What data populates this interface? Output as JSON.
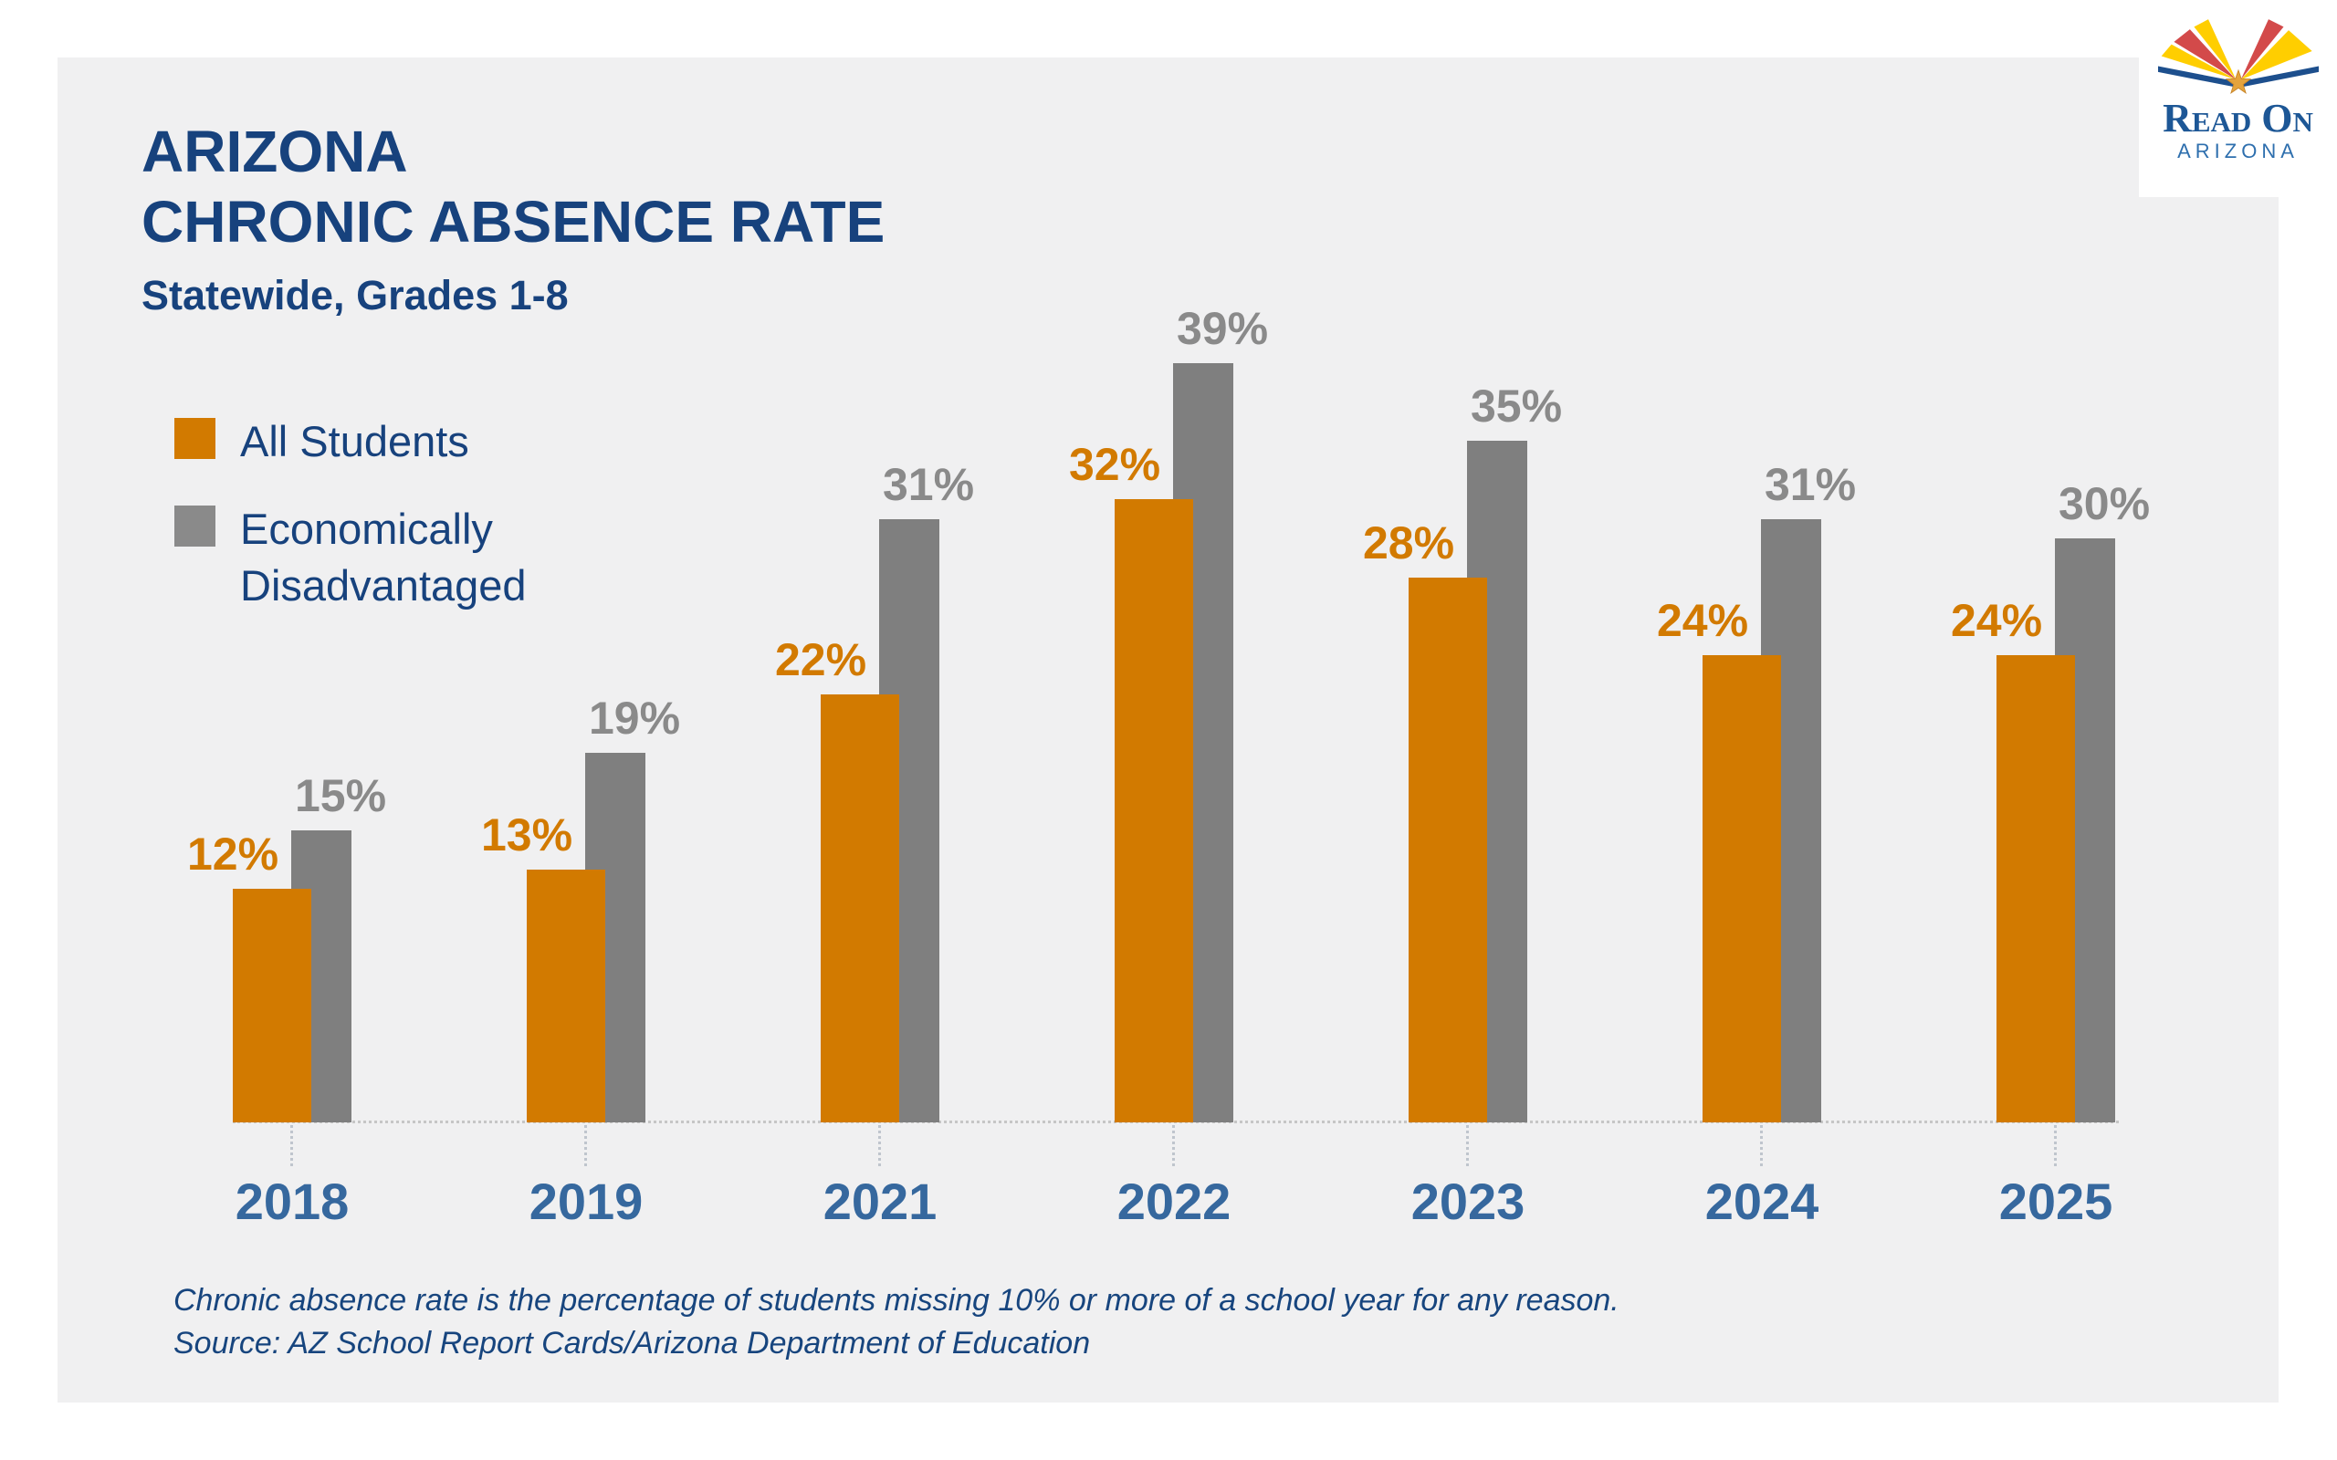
{
  "header": {
    "title_line1": "ARIZONA",
    "title_line2": "CHRONIC ABSENCE RATE",
    "subtitle": "Statewide, Grades 1-8"
  },
  "logo": {
    "brand": "Read On",
    "region": "ARIZONA",
    "colors": {
      "book_blue": "#1D4F8D",
      "ray_yellow": "#FFCE00",
      "ray_red": "#D34A4A",
      "star_gold": "#E5A33C"
    }
  },
  "legend": [
    {
      "label": "All Students",
      "color": "#D27A00"
    },
    {
      "label": "Economically Disadvantaged",
      "color": "#8A8A8A"
    }
  ],
  "footnote": {
    "line1": "Chronic absence rate is the percentage of students missing 10% or more of a school year for any reason.",
    "line2": "Source: AZ School Report Cards/Arizona Department of Education"
  },
  "chart_data": {
    "type": "bar",
    "title": "ARIZONA CHRONIC ABSENCE RATE",
    "subtitle": "Statewide, Grades 1-8",
    "categories": [
      "2018",
      "2019",
      "2021",
      "2022",
      "2023",
      "2024",
      "2025"
    ],
    "series": [
      {
        "name": "All Students",
        "color": "#D27A00",
        "label_color": "#D27A00",
        "values": [
          12,
          13,
          22,
          32,
          28,
          24,
          24
        ]
      },
      {
        "name": "Economically Disadvantaged",
        "color": "#7F7F7F",
        "label_color": "#8A8A8A",
        "values": [
          15,
          19,
          31,
          39,
          35,
          31,
          30
        ]
      }
    ],
    "value_suffix": "%",
    "ylim": [
      0,
      40
    ],
    "grid": false,
    "axis_label_color": "#36689E",
    "legend_position": "top-left"
  }
}
